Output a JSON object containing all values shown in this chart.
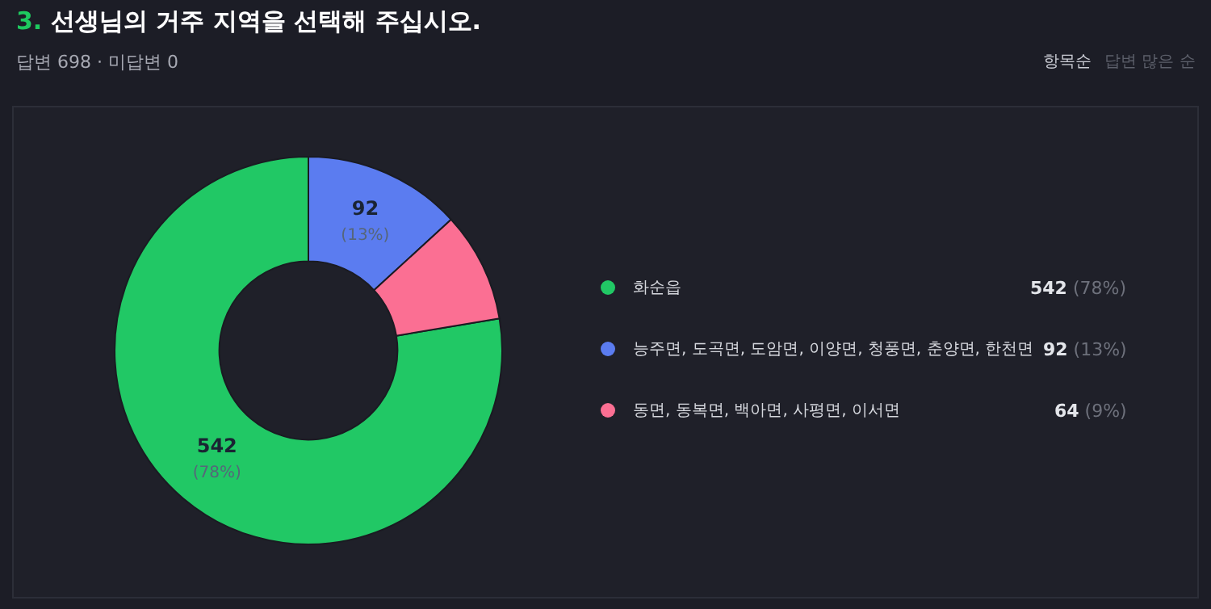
{
  "chart_data": {
    "type": "donut",
    "title": "3. 선생님의 거주 지역을 선택해 주십시오.",
    "categories": [
      "화순읍",
      "능주면, 도곡면, 도암면, 이양면, 청풍면, 춘양면, 한천면",
      "동면, 동복면, 백아면, 사평면, 이서면"
    ],
    "values": [
      542,
      92,
      64
    ],
    "colors": [
      "#21c865",
      "#5b7cf0",
      "#fb6f93"
    ],
    "value_labels": [
      "542 (78%)",
      "92 (13%)",
      null
    ],
    "legend": "right",
    "annotations": [
      "답변 698 · 미답변 0",
      "항목순",
      "답변 많은 순",
      "542 (78%)",
      "92 (13%)",
      "64 (9%)"
    ]
  }
}
